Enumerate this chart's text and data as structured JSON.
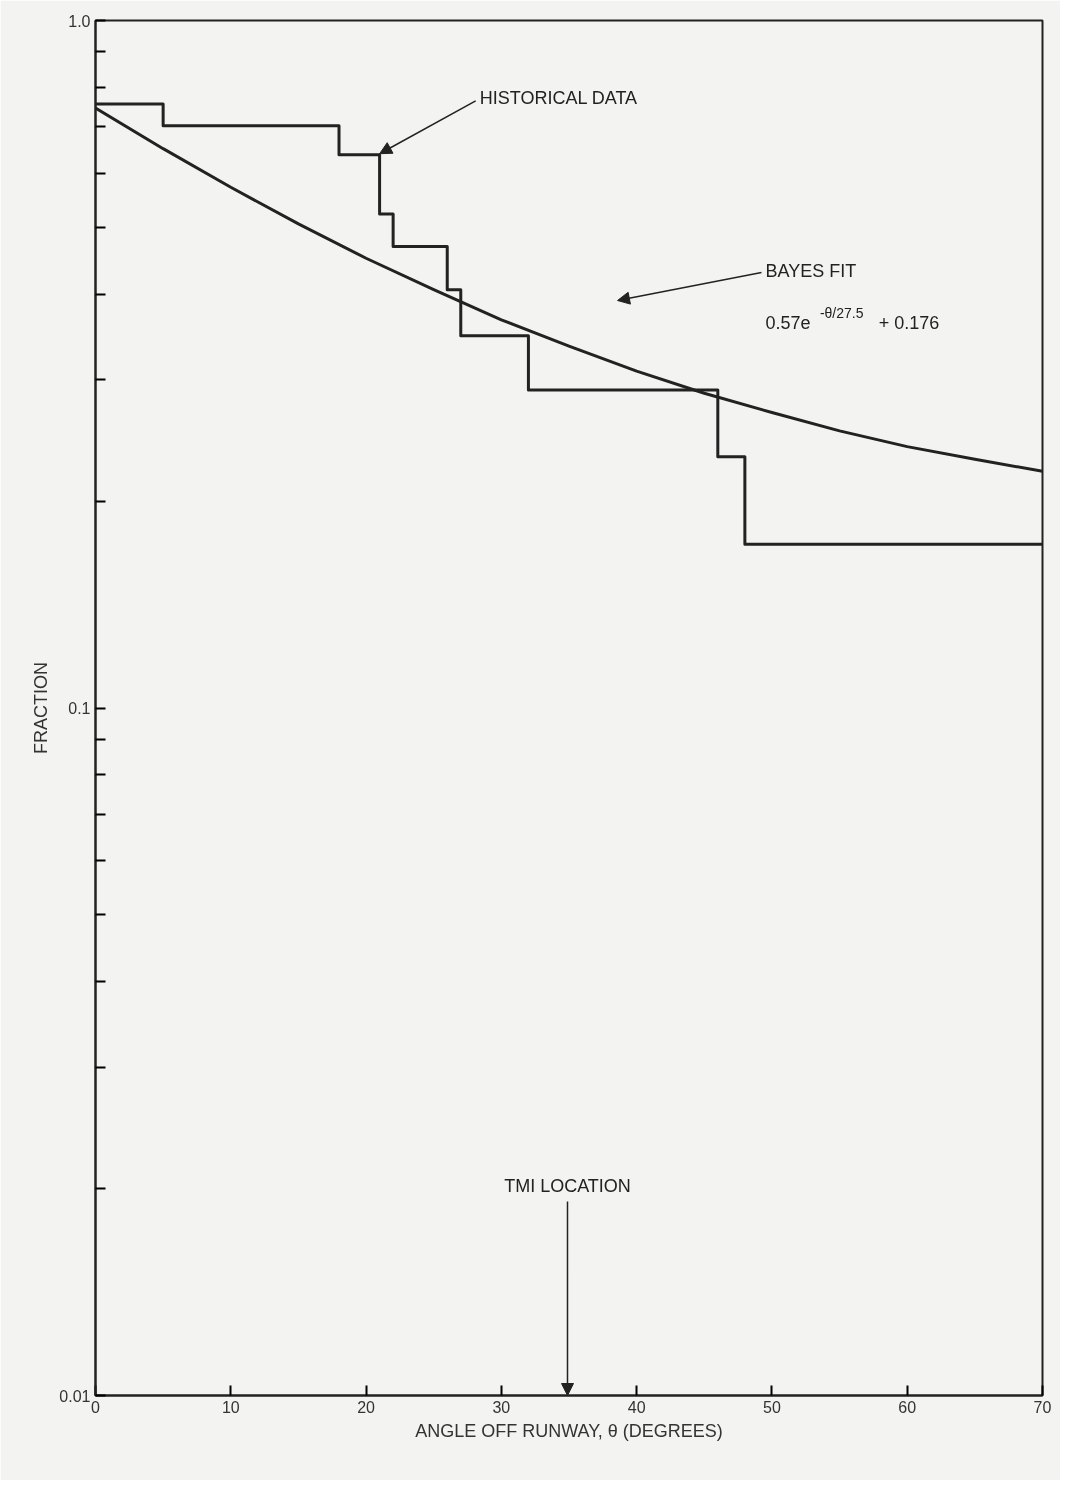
{
  "chart_data": {
    "type": "line",
    "xlabel": "ANGLE OFF RUNWAY, θ (DEGREES)",
    "ylabel": "FRACTION",
    "log": "y",
    "xlim": [
      0,
      70
    ],
    "ylim": [
      0.01,
      1.0
    ],
    "xticks": [
      0,
      10,
      20,
      30,
      40,
      50,
      60,
      70
    ],
    "yticks": [
      {
        "value": 0.01,
        "label": "0.01"
      },
      {
        "value": 0.02,
        "label": null
      },
      {
        "value": 0.03,
        "label": null
      },
      {
        "value": 0.04,
        "label": null
      },
      {
        "value": 0.05,
        "label": null
      },
      {
        "value": 0.06,
        "label": null
      },
      {
        "value": 0.07,
        "label": null
      },
      {
        "value": 0.08,
        "label": null
      },
      {
        "value": 0.09,
        "label": null
      },
      {
        "value": 0.1,
        "label": "0.1"
      },
      {
        "value": 0.2,
        "label": null
      },
      {
        "value": 0.3,
        "label": null
      },
      {
        "value": 0.4,
        "label": null
      },
      {
        "value": 0.5,
        "label": null
      },
      {
        "value": 0.6,
        "label": null
      },
      {
        "value": 0.7,
        "label": null
      },
      {
        "value": 0.8,
        "label": null
      },
      {
        "value": 0.9,
        "label": null
      },
      {
        "value": 1.0,
        "label": "1.0"
      }
    ],
    "grid": false,
    "marker": "none",
    "line_style": "solid",
    "series": [
      {
        "type": "step",
        "color": "#222222",
        "x": [
          0,
          5,
          18,
          21,
          22,
          26,
          27,
          32,
          46,
          48,
          70
        ],
        "values": [
          0.756,
          0.703,
          0.638,
          0.523,
          0.469,
          0.406,
          0.348,
          0.29,
          0.232,
          0.173,
          0.173
        ]
      },
      {
        "color": "#222222",
        "x": [
          0,
          5,
          10,
          15,
          20,
          25,
          30,
          35,
          40,
          45,
          50,
          55,
          60,
          65,
          70
        ],
        "values": [
          0.746,
          0.651,
          0.572,
          0.506,
          0.451,
          0.406,
          0.367,
          0.336,
          0.309,
          0.287,
          0.269,
          0.253,
          0.24,
          0.23,
          0.221
        ]
      }
    ],
    "annotations": [
      {
        "text": "HISTORICAL DATA",
        "x": 21,
        "y": 0.64
      },
      "BAYES FIT",
      "0.57e$^{-θ/27.5}$ + 0.176",
      "TMI LOCATION"
    ]
  }
}
